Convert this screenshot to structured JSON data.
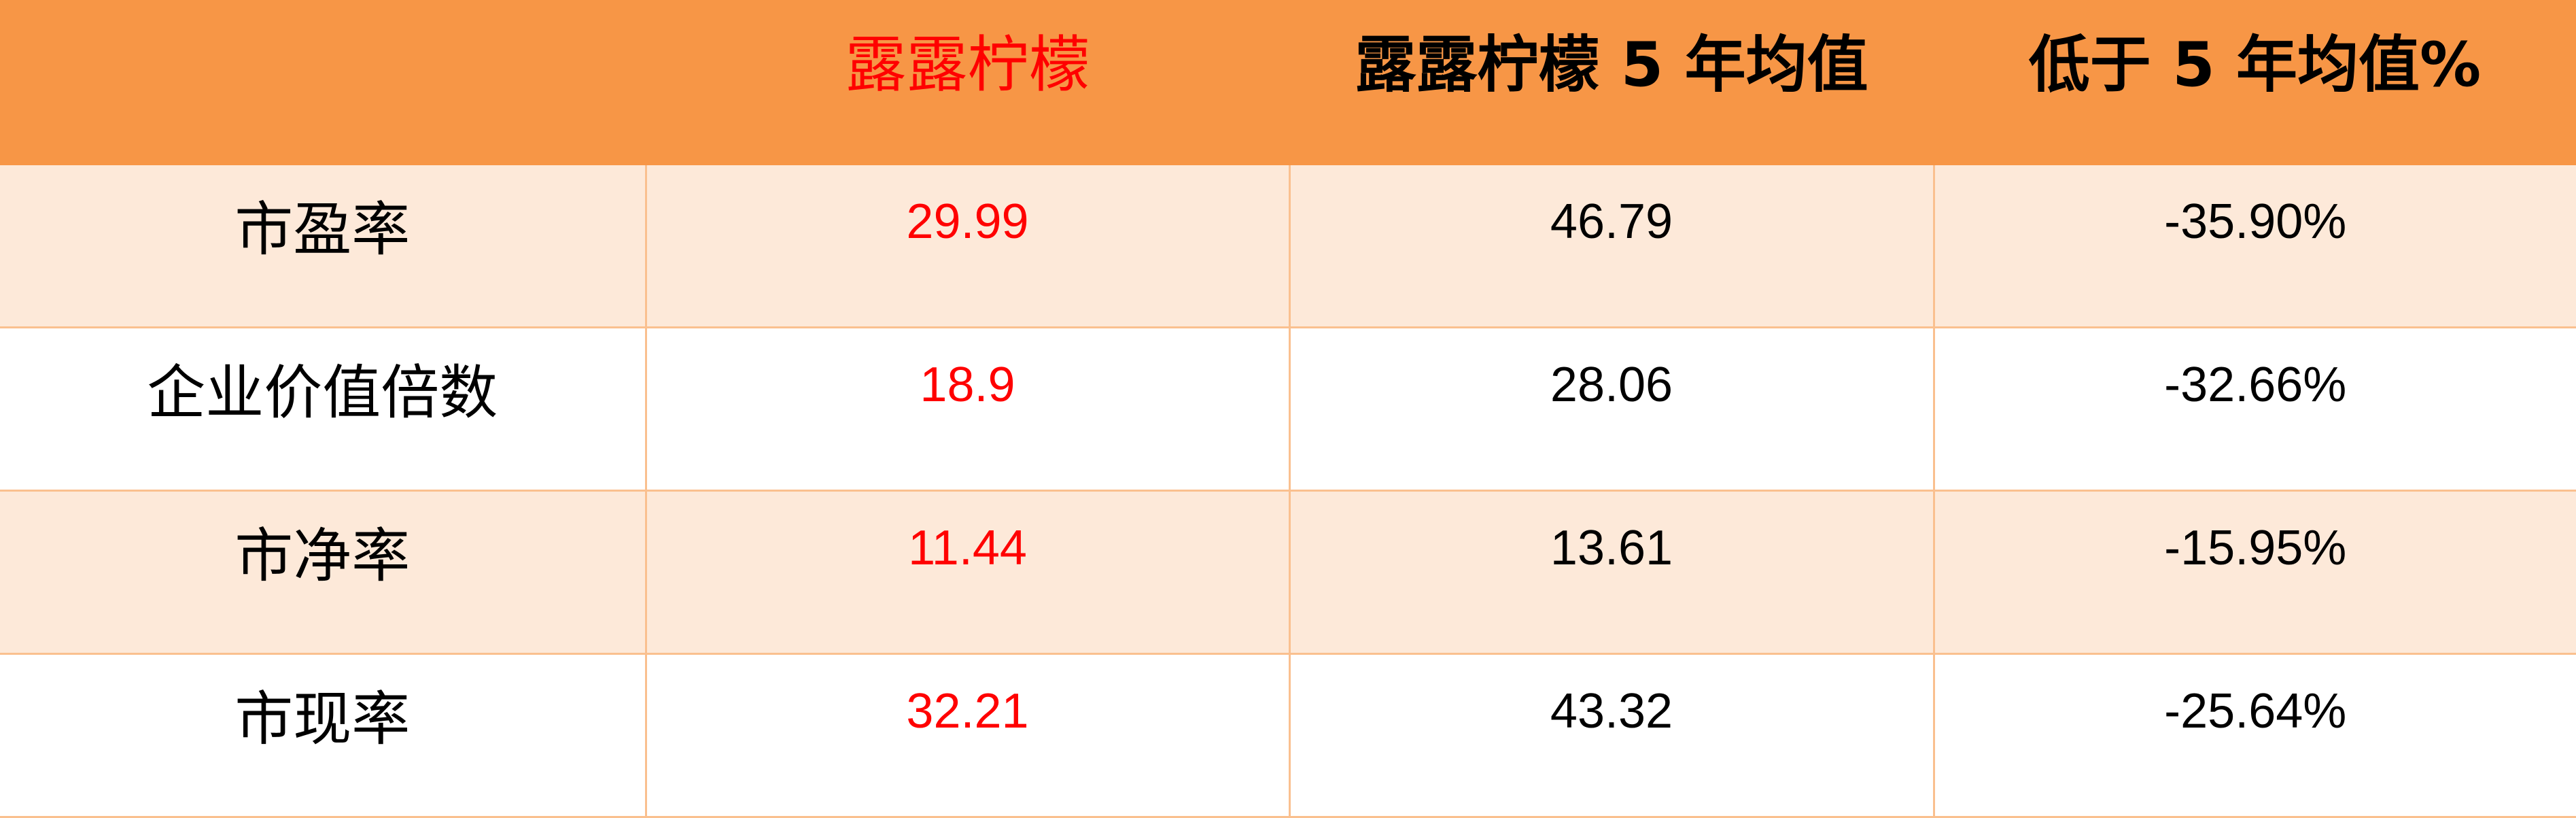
{
  "colors": {
    "header_bg": "#f79646",
    "odd_row_bg": "#fde9d9",
    "even_row_bg": "#ffffff",
    "highlight": "#ff0000",
    "border": "#fac08f"
  },
  "header": [
    "",
    "露露柠檬",
    "露露柠檬 5 年均值",
    "低于 5 年均值%"
  ],
  "rows": [
    {
      "metric": "市盈率",
      "current": "29.99",
      "avg5y": "46.79",
      "diff": "-35.90%"
    },
    {
      "metric": "企业价值倍数",
      "current": "18.9",
      "avg5y": "28.06",
      "diff": "-32.66%"
    },
    {
      "metric": "市净率",
      "current": "11.44",
      "avg5y": "13.61",
      "diff": "-15.95%"
    },
    {
      "metric": "市现率",
      "current": "32.21",
      "avg5y": "43.32",
      "diff": "-25.64%"
    }
  ]
}
